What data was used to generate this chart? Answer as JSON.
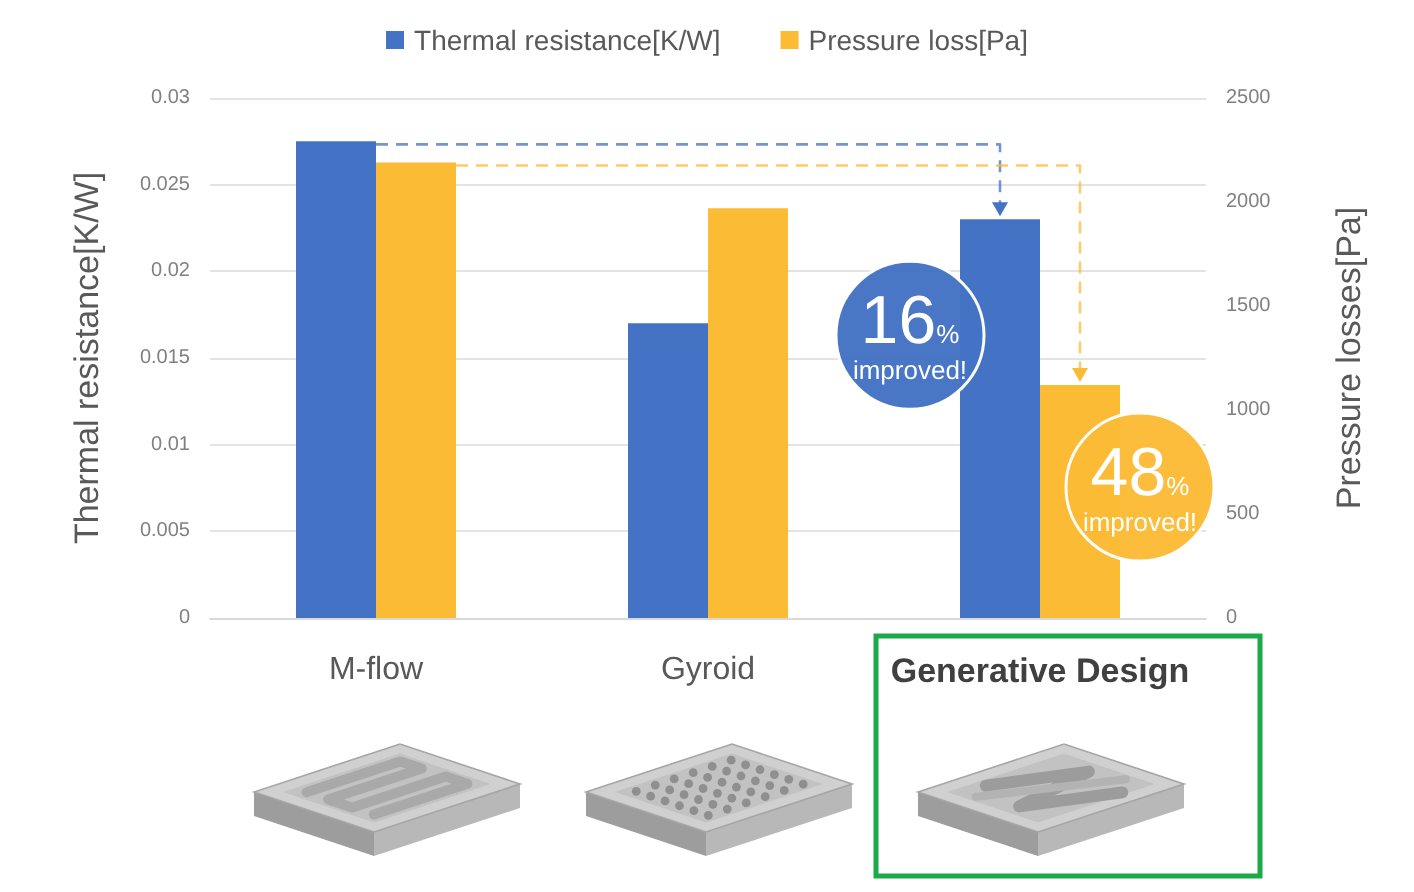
{
  "chart_data": {
    "type": "bar",
    "categories": [
      "M-flow",
      "Gyroid",
      "Generative Design"
    ],
    "series": [
      {
        "name": "Thermal resistance[K/W]",
        "color": "#4472c4",
        "values": [
          0.0275,
          0.017,
          0.023
        ]
      },
      {
        "name": "Pressure loss[Pa]",
        "color": "#fbbb35",
        "values": [
          2190,
          1970,
          1120
        ],
        "axis": "y2"
      }
    ],
    "ylabel": "Thermal resistance[K/W]",
    "y2label": "Pressure losses[Pa]",
    "ylim": [
      0,
      0.03
    ],
    "yticks": [
      0,
      0.005,
      0.01,
      0.015,
      0.02,
      0.025,
      0.03
    ],
    "y2lim": [
      0,
      2500
    ],
    "y2ticks": [
      0,
      500,
      1000,
      1500,
      2000,
      2500
    ],
    "grid": "y",
    "legend": "top",
    "annotations": [
      "16% improved!",
      "48% improved!"
    ]
  }
}
